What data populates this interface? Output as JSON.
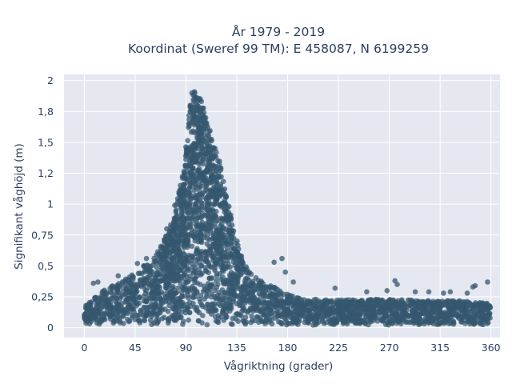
{
  "chart_data": {
    "type": "scatter",
    "title_lines": [
      "År 1979 - 2019",
      "Koordinat (Sweref 99 TM): E 458087, N 6199259"
    ],
    "xlabel": "Vågriktning (grader)",
    "ylabel": "Signifikant våghöjd (m)",
    "xlim": [
      -18,
      368
    ],
    "ylim": [
      -0.08,
      2.05
    ],
    "xticks": [
      0,
      45,
      90,
      135,
      180,
      225,
      270,
      315,
      360
    ],
    "xtick_labels": [
      "0",
      "45",
      "90",
      "135",
      "180",
      "225",
      "270",
      "315",
      "360"
    ],
    "yticks": [
      0,
      0.25,
      0.5,
      0.75,
      1.0,
      1.25,
      1.5,
      1.75,
      2.0
    ],
    "ytick_labels": [
      "0",
      "0,25",
      "0,5",
      "0,75",
      "1",
      "1,2",
      "1,5",
      "1,8",
      "2"
    ],
    "grid": true,
    "marker_color": "#35576f",
    "plot_background": "#e5e8f0",
    "envelope": {
      "description_x": [
        0,
        10,
        20,
        30,
        40,
        50,
        60,
        70,
        80,
        88,
        95,
        100,
        105,
        110,
        115,
        120,
        125,
        130,
        135,
        140,
        145,
        150,
        160,
        170,
        180,
        190,
        200,
        225,
        250,
        270,
        300,
        330,
        360
      ],
      "upper_y": [
        0.17,
        0.25,
        0.32,
        0.37,
        0.42,
        0.48,
        0.56,
        0.7,
        0.93,
        1.3,
        1.95,
        1.93,
        1.8,
        1.66,
        1.5,
        1.34,
        1.12,
        0.9,
        0.72,
        0.56,
        0.48,
        0.42,
        0.36,
        0.32,
        0.28,
        0.24,
        0.23,
        0.23,
        0.23,
        0.23,
        0.22,
        0.22,
        0.2
      ]
    },
    "outliers": [
      {
        "x": 8,
        "y": 0.36
      },
      {
        "x": 12,
        "y": 0.37
      },
      {
        "x": 30,
        "y": 0.42
      },
      {
        "x": 47,
        "y": 0.52
      },
      {
        "x": 55,
        "y": 0.56
      },
      {
        "x": 73,
        "y": 0.8
      },
      {
        "x": 80,
        "y": 0.99
      },
      {
        "x": 168,
        "y": 0.53
      },
      {
        "x": 175,
        "y": 0.56
      },
      {
        "x": 178,
        "y": 0.45
      },
      {
        "x": 185,
        "y": 0.37
      },
      {
        "x": 222,
        "y": 0.32
      },
      {
        "x": 250,
        "y": 0.29
      },
      {
        "x": 268,
        "y": 0.3
      },
      {
        "x": 275,
        "y": 0.38
      },
      {
        "x": 277,
        "y": 0.35
      },
      {
        "x": 293,
        "y": 0.29
      },
      {
        "x": 305,
        "y": 0.29
      },
      {
        "x": 318,
        "y": 0.28
      },
      {
        "x": 324,
        "y": 0.29
      },
      {
        "x": 339,
        "y": 0.28
      },
      {
        "x": 344,
        "y": 0.33
      },
      {
        "x": 346,
        "y": 0.34
      },
      {
        "x": 357,
        "y": 0.37
      }
    ],
    "point_count": 3500
  }
}
